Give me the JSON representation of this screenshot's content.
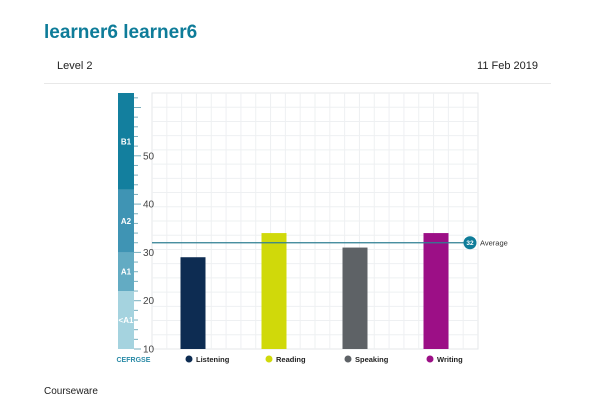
{
  "learner": {
    "name": "learner6 learner6"
  },
  "report": {
    "level": "Level 2",
    "date": "11 Feb 2019"
  },
  "chart_data": {
    "type": "bar",
    "categories": [
      "Listening",
      "Reading",
      "Speaking",
      "Writing"
    ],
    "values": [
      29,
      34,
      31,
      34
    ],
    "colors": [
      "#0d2c52",
      "#d0d90a",
      "#5e6266",
      "#9c0f86"
    ],
    "ylim": [
      10,
      63
    ],
    "yticks": [
      10,
      20,
      30,
      40,
      50
    ],
    "y_axis_label": "GSE",
    "cefr_axis_label": "CEFR",
    "cefr_bands": [
      {
        "label": "<A1",
        "from": 10,
        "to": 22,
        "color": "#a5d3df"
      },
      {
        "label": "A1",
        "from": 22,
        "to": 30,
        "color": "#63abc3"
      },
      {
        "label": "A2",
        "from": 30,
        "to": 43,
        "color": "#3f94b4"
      },
      {
        "label": "B1",
        "from": 43,
        "to": 63,
        "color": "#137f9e"
      }
    ],
    "average": {
      "value": 32,
      "badge": "32",
      "label": "Average",
      "color": "#2f7f93"
    },
    "grid": true,
    "legend_position": "bottom"
  },
  "footer": {
    "section_title": "Courseware"
  }
}
